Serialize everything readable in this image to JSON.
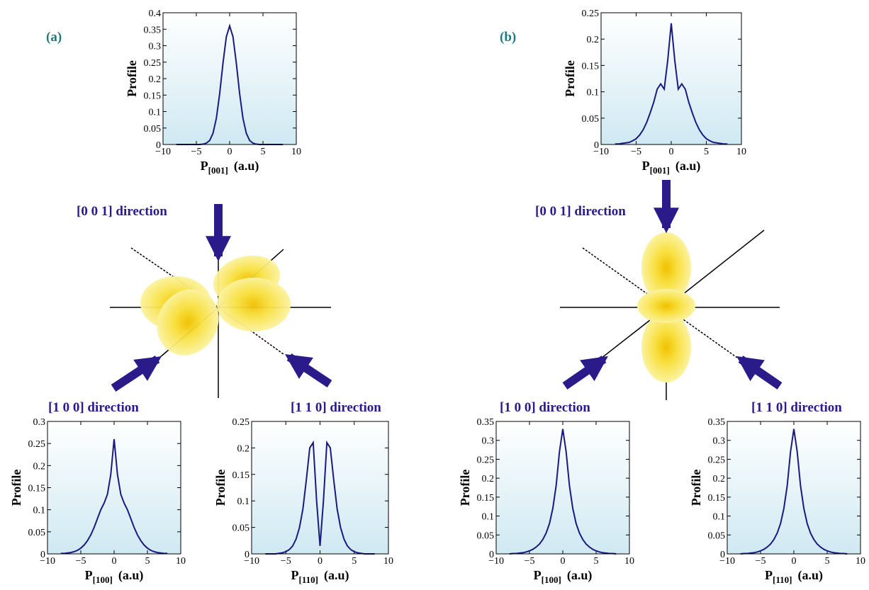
{
  "panels": [
    {
      "label": "(a)",
      "directions": [
        "[0 0 1] direction",
        "[1 0 0] direction",
        "[1 1 0] direction"
      ]
    },
    {
      "label": "(b)",
      "directions": [
        "[0 0 1] direction",
        "[1 0 0] direction",
        "[1 1 0] direction"
      ]
    }
  ],
  "chart_data": [
    {
      "type": "line",
      "ylabel": "Profile",
      "xlabel": "P",
      "xlabel_sub": "[001]",
      "xlabel_unit": "(a.u)",
      "xlim": [
        -10,
        10
      ],
      "xticks": [
        {
          "value": -10,
          "label": "−10"
        },
        {
          "value": -5,
          "label": "−5"
        },
        0,
        5,
        10
      ],
      "ylim": [
        0,
        0.4
      ],
      "yticks": [
        0,
        0.05,
        0.1,
        0.15,
        0.2,
        0.25,
        0.3,
        0.35,
        0.4
      ],
      "x": [
        -8,
        -7.5,
        -7,
        -6.5,
        -6,
        -5.5,
        -5,
        -4.5,
        -4,
        -3.5,
        -3,
        -2.5,
        -2,
        -1.5,
        -1,
        -0.5,
        0,
        0.5,
        1,
        1.5,
        2,
        2.5,
        3,
        3.5,
        4,
        4.5,
        5,
        5.5,
        6,
        6.5,
        7,
        7.5,
        8
      ],
      "series": [
        {
          "color": "#1a1a80",
          "values": [
            0,
            0,
            0,
            0,
            0,
            0,
            0,
            0,
            0.001,
            0.004,
            0.012,
            0.034,
            0.079,
            0.154,
            0.247,
            0.327,
            0.36,
            0.327,
            0.247,
            0.154,
            0.079,
            0.034,
            0.012,
            0.004,
            0.001,
            0,
            0,
            0,
            0,
            0,
            0,
            0,
            0
          ]
        }
      ]
    },
    {
      "type": "line",
      "ylabel": "Profile",
      "xlabel": "P",
      "xlabel_sub": "[001]",
      "xlabel_unit": "(a.u)",
      "xlim": [
        -10,
        10
      ],
      "xticks": [
        {
          "value": -10,
          "label": "−10"
        },
        {
          "value": -5,
          "label": "−5"
        },
        0,
        5,
        10
      ],
      "ylim": [
        0,
        0.25
      ],
      "yticks": [
        0,
        0.05,
        0.1,
        0.15,
        0.2,
        0.25
      ],
      "x": [
        -8,
        -7.5,
        -7,
        -6.5,
        -6,
        -5.5,
        -5,
        -4.5,
        -4,
        -3.5,
        -3,
        -2.5,
        -2,
        -1.5,
        -1,
        -0.5,
        0,
        0.5,
        1,
        1.5,
        2,
        2.5,
        3,
        3.5,
        4,
        4.5,
        5,
        5.5,
        6,
        6.5,
        7,
        7.5,
        8
      ],
      "series": [
        {
          "color": "#1a1a80",
          "values": [
            0.001,
            0.001,
            0.002,
            0.003,
            0.004,
            0.007,
            0.011,
            0.018,
            0.028,
            0.042,
            0.06,
            0.08,
            0.105,
            0.115,
            0.105,
            0.16,
            0.23,
            0.16,
            0.105,
            0.115,
            0.105,
            0.08,
            0.06,
            0.042,
            0.028,
            0.018,
            0.011,
            0.007,
            0.004,
            0.003,
            0.002,
            0.001,
            0.001
          ]
        }
      ]
    },
    {
      "type": "line",
      "ylabel": "Profile",
      "xlabel": "P",
      "xlabel_sub": "[100]",
      "xlabel_unit": "(a.u)",
      "xlim": [
        -10,
        10
      ],
      "xticks": [
        {
          "value": -10,
          "label": "−10"
        },
        {
          "value": -5,
          "label": "−5"
        },
        0,
        5,
        10
      ],
      "ylim": [
        0,
        0.3
      ],
      "yticks": [
        0,
        0.05,
        0.1,
        0.15,
        0.2,
        0.25,
        0.3
      ],
      "x": [
        -8,
        -7.5,
        -7,
        -6.5,
        -6,
        -5.5,
        -5,
        -4.5,
        -4,
        -3.5,
        -3,
        -2.5,
        -2,
        -1.5,
        -1,
        -0.5,
        0,
        0.5,
        1,
        1.5,
        2,
        2.5,
        3,
        3.5,
        4,
        4.5,
        5,
        5.5,
        6,
        6.5,
        7,
        7.5,
        8
      ],
      "series": [
        {
          "color": "#1a1a80",
          "values": [
            0.001,
            0.001,
            0.002,
            0.003,
            0.005,
            0.008,
            0.013,
            0.02,
            0.03,
            0.043,
            0.06,
            0.08,
            0.1,
            0.115,
            0.135,
            0.18,
            0.26,
            0.18,
            0.135,
            0.115,
            0.1,
            0.08,
            0.06,
            0.043,
            0.03,
            0.02,
            0.013,
            0.008,
            0.005,
            0.003,
            0.002,
            0.001,
            0.001
          ]
        }
      ]
    },
    {
      "type": "line",
      "ylabel": "Profile",
      "xlabel": "P",
      "xlabel_sub": "[110]",
      "xlabel_unit": "(a.u)",
      "xlim": [
        -10,
        10
      ],
      "xticks": [
        {
          "value": -10,
          "label": "−10"
        },
        {
          "value": -5,
          "label": "−5"
        },
        0,
        5,
        10
      ],
      "ylim": [
        0,
        0.25
      ],
      "yticks": [
        0,
        0.05,
        0.1,
        0.15,
        0.2,
        0.25
      ],
      "x": [
        -8,
        -7.5,
        -7,
        -6.5,
        -6,
        -5.5,
        -5,
        -4.5,
        -4,
        -3.5,
        -3,
        -2.5,
        -2,
        -1.5,
        -1,
        -0.5,
        0,
        0.5,
        1,
        1.5,
        2,
        2.5,
        3,
        3.5,
        4,
        4.5,
        5,
        5.5,
        6,
        6.5,
        7,
        7.5,
        8
      ],
      "series": [
        {
          "color": "#1a1a80",
          "values": [
            0,
            0,
            0,
            0,
            0.001,
            0.002,
            0.004,
            0.008,
            0.015,
            0.028,
            0.05,
            0.085,
            0.14,
            0.2,
            0.21,
            0.1,
            0.015,
            0.1,
            0.21,
            0.2,
            0.14,
            0.085,
            0.05,
            0.028,
            0.015,
            0.008,
            0.004,
            0.002,
            0.001,
            0,
            0,
            0,
            0
          ]
        }
      ]
    },
    {
      "type": "line",
      "ylabel": "Profile",
      "xlabel": "P",
      "xlabel_sub": "[100]",
      "xlabel_unit": "(a.u)",
      "xlim": [
        -10,
        10
      ],
      "xticks": [
        {
          "value": -10,
          "label": "−10"
        },
        {
          "value": -5,
          "label": "−5"
        },
        0,
        5,
        10
      ],
      "ylim": [
        0,
        0.35
      ],
      "yticks": [
        0,
        0.05,
        0.1,
        0.15,
        0.2,
        0.25,
        0.3,
        0.35
      ],
      "x": [
        -8,
        -7.5,
        -7,
        -6.5,
        -6,
        -5.5,
        -5,
        -4.5,
        -4,
        -3.5,
        -3,
        -2.5,
        -2,
        -1.5,
        -1,
        -0.5,
        0,
        0.5,
        1,
        1.5,
        2,
        2.5,
        3,
        3.5,
        4,
        4.5,
        5,
        5.5,
        6,
        6.5,
        7,
        7.5,
        8
      ],
      "series": [
        {
          "color": "#1a1a80",
          "values": [
            0,
            0.001,
            0.001,
            0.002,
            0.003,
            0.005,
            0.008,
            0.012,
            0.018,
            0.026,
            0.038,
            0.055,
            0.08,
            0.12,
            0.18,
            0.27,
            0.33,
            0.27,
            0.18,
            0.12,
            0.08,
            0.055,
            0.038,
            0.026,
            0.018,
            0.012,
            0.008,
            0.005,
            0.003,
            0.002,
            0.001,
            0.001,
            0
          ]
        }
      ]
    },
    {
      "type": "line",
      "ylabel": "Profile",
      "xlabel": "P",
      "xlabel_sub": "[110]",
      "xlabel_unit": "(a.u)",
      "xlim": [
        -10,
        10
      ],
      "xticks": [
        {
          "value": -10,
          "label": "−10"
        },
        {
          "value": -5,
          "label": "−5"
        },
        0,
        5,
        10
      ],
      "ylim": [
        0,
        0.35
      ],
      "yticks": [
        0,
        0.05,
        0.1,
        0.15,
        0.2,
        0.25,
        0.3,
        0.35
      ],
      "x": [
        -8,
        -7.5,
        -7,
        -6.5,
        -6,
        -5.5,
        -5,
        -4.5,
        -4,
        -3.5,
        -3,
        -2.5,
        -2,
        -1.5,
        -1,
        -0.5,
        0,
        0.5,
        1,
        1.5,
        2,
        2.5,
        3,
        3.5,
        4,
        4.5,
        5,
        5.5,
        6,
        6.5,
        7,
        7.5,
        8
      ],
      "series": [
        {
          "color": "#1a1a80",
          "values": [
            0,
            0.001,
            0.001,
            0.002,
            0.003,
            0.005,
            0.008,
            0.012,
            0.018,
            0.026,
            0.038,
            0.055,
            0.08,
            0.12,
            0.18,
            0.27,
            0.33,
            0.27,
            0.18,
            0.12,
            0.08,
            0.055,
            0.038,
            0.026,
            0.018,
            0.012,
            0.008,
            0.005,
            0.003,
            0.002,
            0.001,
            0.001,
            0
          ]
        }
      ]
    }
  ]
}
